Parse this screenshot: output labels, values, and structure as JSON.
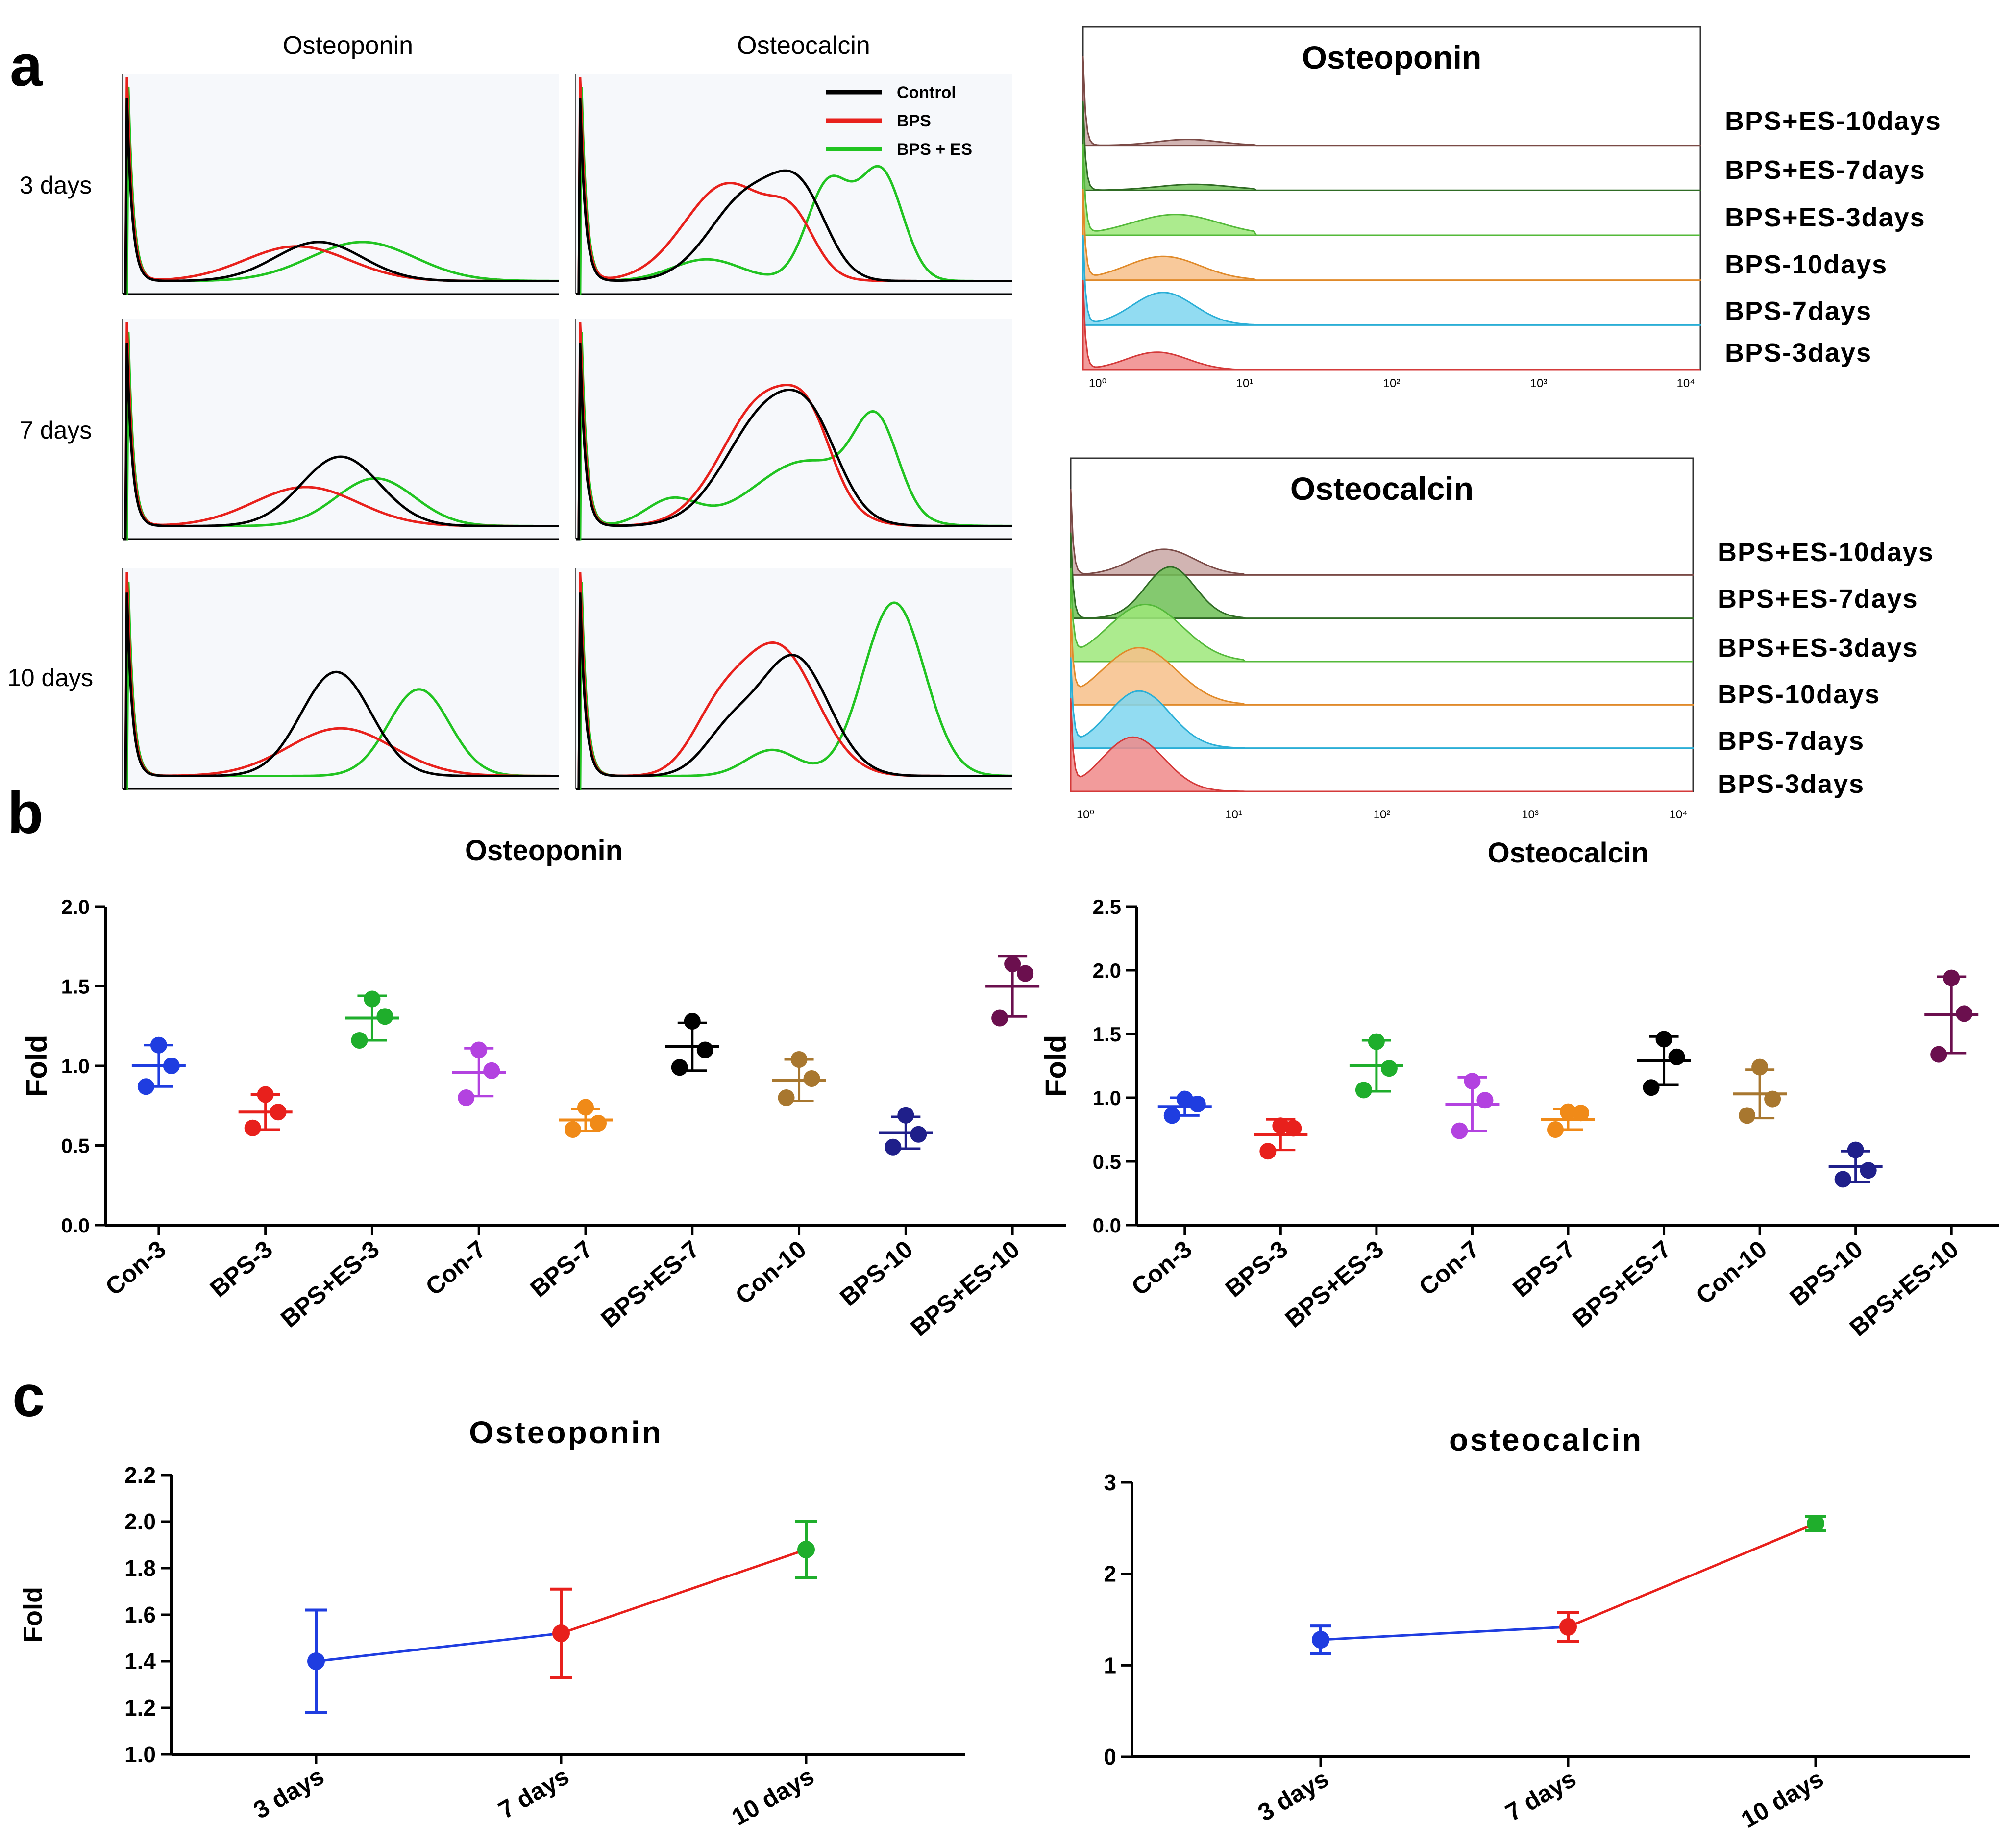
{
  "figure": {
    "panel_a": "a",
    "panel_b": "b",
    "panel_c": "c"
  },
  "colors": {
    "control": "#000000",
    "bps": "#e8211c",
    "bpses": "#21c421",
    "plot_bg": "#f6f8fb",
    "con3": "#1f3de0",
    "bps3": "#e8201c",
    "bpses3": "#1fae2c",
    "con7": "#b342e0",
    "bps7": "#f08a18",
    "bpses7": "#000000",
    "con10": "#a8772f",
    "bps10": "#1f1f8a",
    "bpses10": "#6b0f4e",
    "c_blue": "#1f3de0",
    "c_red": "#e8201c",
    "c_green": "#1fae2c"
  },
  "panel_a": {
    "col_titles": [
      "Osteoponin",
      "Osteocalcin"
    ],
    "row_labels": [
      "3 days",
      "7 days",
      "10 days"
    ],
    "legend": [
      {
        "label": "Control",
        "color": "#000000"
      },
      {
        "label": "BPS",
        "color": "#e8211c"
      },
      {
        "label": "BPS + ES",
        "color": "#21c421"
      }
    ]
  },
  "flow": [
    {
      "title": "Osteoponin",
      "labels": [
        "BPS+ES-10days",
        "BPS+ES-7days",
        "BPS+ES-3days",
        "BPS-10days",
        "BPS-7days",
        "BPS-3days"
      ],
      "ticks": [
        "10⁰",
        "10¹",
        "10²",
        "10³",
        "10⁴"
      ]
    },
    {
      "title": "Osteocalcin",
      "labels": [
        "BPS+ES-10days",
        "BPS+ES-7days",
        "BPS+ES-3days",
        "BPS-10days",
        "BPS-7days",
        "BPS-3days"
      ],
      "ticks": [
        "10⁰",
        "10¹",
        "10²",
        "10³",
        "10⁴"
      ]
    }
  ],
  "chart_data": [
    {
      "type": "scatter",
      "title": "Osteoponin",
      "ylabel": "Fold",
      "ylim": [
        0.0,
        2.0
      ],
      "yticks": [
        "0.0",
        "0.5",
        "1.0",
        "1.5",
        "2.0"
      ],
      "categories": [
        "Con-3",
        "BPS-3",
        "BPS+ES-3",
        "Con-7",
        "BPS-7",
        "BPS+ES-7",
        "Con-10",
        "BPS-10",
        "BPS+ES-10"
      ],
      "points": [
        [
          1.13,
          0.87,
          1.0
        ],
        [
          0.82,
          0.61,
          0.71
        ],
        [
          1.42,
          1.16,
          1.31
        ],
        [
          1.1,
          0.8,
          0.97
        ],
        [
          0.74,
          0.6,
          0.64
        ],
        [
          1.28,
          0.99,
          1.1
        ],
        [
          1.04,
          0.8,
          0.92
        ],
        [
          0.69,
          0.49,
          0.57
        ],
        [
          1.64,
          1.3,
          1.58
        ]
      ],
      "mean": [
        1.0,
        0.71,
        1.3,
        0.96,
        0.66,
        1.12,
        0.91,
        0.58,
        1.5
      ],
      "sd": [
        0.13,
        0.11,
        0.14,
        0.15,
        0.07,
        0.15,
        0.13,
        0.1,
        0.19
      ]
    },
    {
      "type": "scatter",
      "title": "Osteocalcin",
      "ylabel": "Fold",
      "ylim": [
        0.0,
        2.5
      ],
      "yticks": [
        "0.0",
        "0.5",
        "1.0",
        "1.5",
        "2.0",
        "2.5"
      ],
      "categories": [
        "Con-3",
        "BPS-3",
        "BPS+ES-3",
        "Con-7",
        "BPS-7",
        "BPS+ES-7",
        "Con-10",
        "BPS-10",
        "BPS+ES-10"
      ],
      "points": [
        [
          0.99,
          0.86,
          0.95
        ],
        [
          0.78,
          0.58,
          0.76
        ],
        [
          1.44,
          1.06,
          1.23
        ],
        [
          1.13,
          0.74,
          0.98
        ],
        [
          0.89,
          0.75,
          0.88
        ],
        [
          1.46,
          1.08,
          1.32
        ],
        [
          1.24,
          0.86,
          0.99
        ],
        [
          0.59,
          0.36,
          0.43
        ],
        [
          1.94,
          1.34,
          1.66
        ]
      ],
      "mean": [
        0.93,
        0.71,
        1.25,
        0.95,
        0.83,
        1.29,
        1.03,
        0.46,
        1.65
      ],
      "sd": [
        0.07,
        0.12,
        0.2,
        0.21,
        0.08,
        0.19,
        0.19,
        0.12,
        0.3
      ]
    },
    {
      "type": "line",
      "title": "Osteoponin",
      "ylabel": "Fold",
      "ylim": [
        1.0,
        2.2
      ],
      "yticks": [
        "1.0",
        "1.2",
        "1.4",
        "1.6",
        "1.8",
        "2.0",
        "2.2"
      ],
      "categories": [
        "3 days",
        "7 days",
        "10 days"
      ],
      "values": [
        1.4,
        1.52,
        1.88
      ],
      "err": [
        0.22,
        0.19,
        0.12
      ]
    },
    {
      "type": "line",
      "title": "osteocalcin",
      "ylabel": "",
      "ylim": [
        0,
        3
      ],
      "yticks": [
        "0",
        "1",
        "2",
        "3"
      ],
      "categories": [
        "3 days",
        "7 days",
        "10 days"
      ],
      "values": [
        1.28,
        1.42,
        2.55
      ],
      "err": [
        0.15,
        0.16,
        0.08
      ]
    }
  ]
}
